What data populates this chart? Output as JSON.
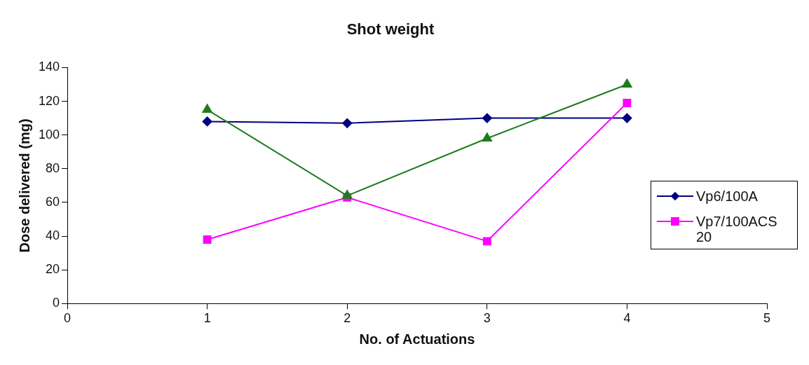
{
  "chart_data": {
    "type": "line",
    "title": "Shot weight",
    "xlabel": "No. of Actuations",
    "ylabel": "Dose delivered (mg)",
    "x": [
      1,
      2,
      3,
      4
    ],
    "xlim": [
      0,
      5
    ],
    "xticks": [
      0,
      1,
      2,
      3,
      4,
      5
    ],
    "ylim": [
      0,
      140
    ],
    "yticks": [
      0,
      20,
      40,
      60,
      80,
      100,
      120,
      140
    ],
    "grid": false,
    "legend": "right",
    "series": [
      {
        "name": "Vp6/100A",
        "color": "#000080",
        "marker": "diamond",
        "values": [
          108,
          107,
          110,
          110
        ]
      },
      {
        "name": "Vp7/100ACS 20",
        "color": "#ff00ff",
        "marker": "square",
        "values": [
          38,
          63,
          37,
          119
        ]
      },
      {
        "color": "#1e7b1e",
        "marker": "triangle",
        "values": [
          115,
          64,
          98,
          130
        ]
      }
    ]
  }
}
